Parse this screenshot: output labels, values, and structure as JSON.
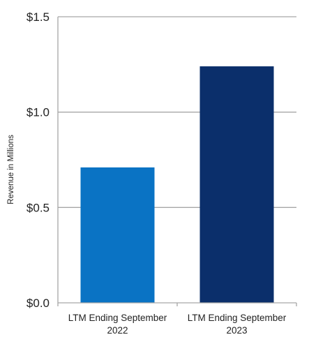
{
  "chart_data": {
    "type": "bar",
    "title": "",
    "xlabel": "",
    "ylabel": "Revenue in Millions",
    "ylim": [
      0,
      1.5
    ],
    "yticks": [
      0,
      0.5,
      1.0,
      1.5
    ],
    "ytick_labels": [
      "$0.0",
      "$0.5",
      "$1.0",
      "$1.5"
    ],
    "grid": true,
    "categories": [
      [
        "LTM Ending September",
        "2022"
      ],
      [
        "LTM Ending September",
        "2023"
      ]
    ],
    "values": [
      0.71,
      1.24
    ],
    "colors": [
      "#0a73c4",
      "#0b2f6b"
    ]
  },
  "colors": {
    "gridline": "#a6a6a6",
    "axis": "#a6a6a6"
  }
}
